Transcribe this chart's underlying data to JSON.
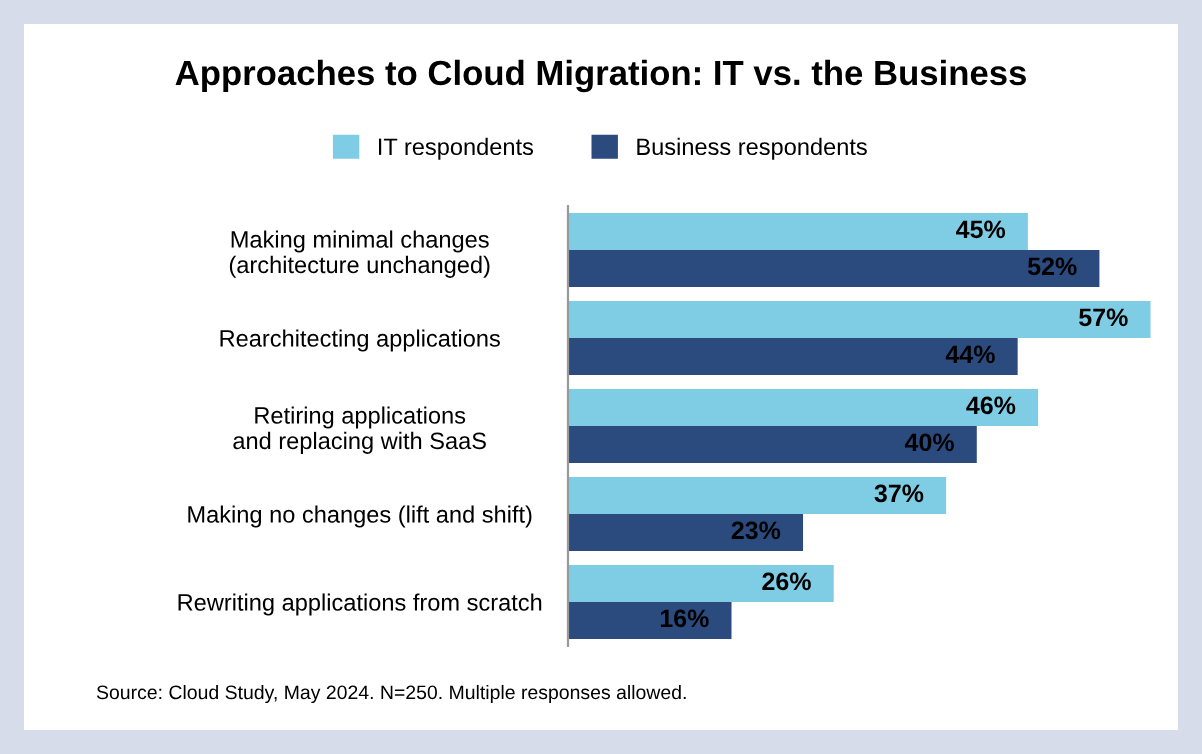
{
  "chart_data": {
    "type": "bar",
    "orientation": "horizontal",
    "title": "Approaches to Cloud Migration: IT vs. the Business",
    "categories": [
      "Making minimal changes\n(architecture unchanged)",
      "Rearchitecting applications",
      "Retiring applications\nand replacing with SaaS",
      "Making no changes (lift and shift)",
      "Rewriting applications from scratch"
    ],
    "series": [
      {
        "name": "IT respondents",
        "color": "#7fcde4",
        "values": [
          45,
          57,
          46,
          37,
          26
        ],
        "value_labels": [
          "45%",
          "57%",
          "46%",
          "37%",
          "26%"
        ]
      },
      {
        "name": "Business respondents",
        "color": "#2b4a7e",
        "values": [
          52,
          44,
          40,
          23,
          16
        ],
        "value_labels": [
          "52%",
          "44%",
          "40%",
          "23%",
          "16%"
        ]
      }
    ],
    "legend": "top",
    "grid": false,
    "annotations": [
      "Source: Cloud Study, May 2024. N=250. Multiple responses allowed."
    ]
  }
}
